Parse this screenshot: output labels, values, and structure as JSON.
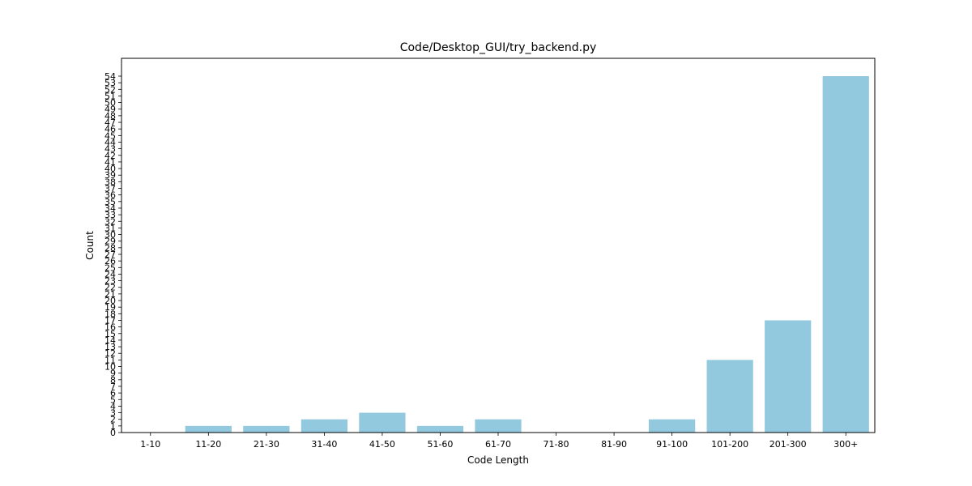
{
  "chart_data": {
    "type": "bar",
    "title": "Code/Desktop_GUI/try_backend.py",
    "xlabel": "Code Length",
    "ylabel": "Count",
    "categories": [
      "1-10",
      "11-20",
      "21-30",
      "31-40",
      "41-50",
      "51-60",
      "61-70",
      "71-80",
      "81-90",
      "91-100",
      "101-200",
      "201-300",
      "300+"
    ],
    "values": [
      0,
      1,
      1,
      2,
      3,
      1,
      2,
      0,
      0,
      2,
      11,
      17,
      54
    ],
    "ylim": [
      0,
      56.7
    ],
    "yticks_max": 54,
    "bar_color": "#92c9df",
    "grid": false,
    "legend": false
  }
}
